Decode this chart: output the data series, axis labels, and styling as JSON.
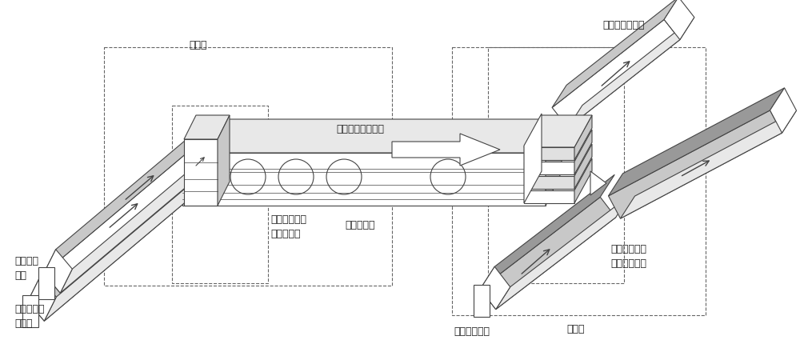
{
  "bg_color": "#ffffff",
  "line_color": "#444444",
  "gray_fill": "#c8c8c8",
  "light_gray": "#e8e8e8",
  "dark_gray": "#999999",
  "dashed_color": "#666666",
  "text_color": "#222222",
  "labels": {
    "fasong_duan": "发送端",
    "jieshou_duan": "接收端",
    "jieshou_xinhao": "接收到的电信号",
    "ciji_xinhao": "磁性斯格明子序列",
    "cijimi_guidao": "磁纳米轨道",
    "xinhao_shengchengqi": "磁性斯格明子\n信号生成器",
    "xinhao_duqu": "磁性斯格明子\n信号读取装置",
    "qudong_maichong": "驱动电流\n脉冲",
    "duqu_maichong": "读取电流脉冲",
    "xuyao_fasong": "需要发送的\n电信号"
  },
  "font_size": 9,
  "fig_width": 10.0,
  "fig_height": 4.31
}
